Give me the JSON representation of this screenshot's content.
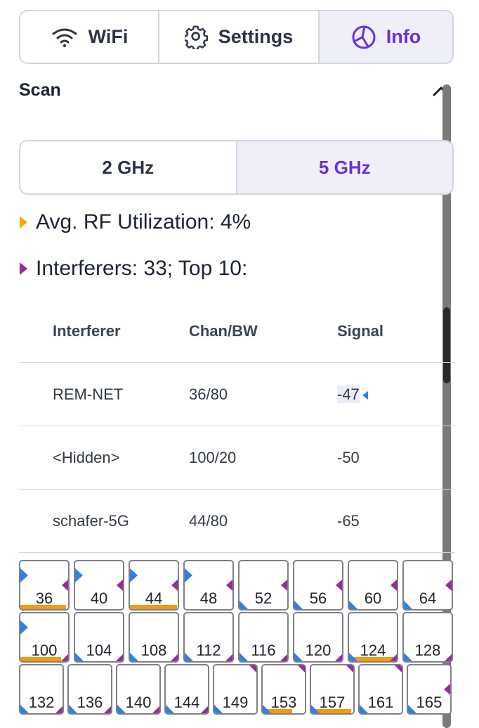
{
  "tabs": [
    {
      "label": "WiFi",
      "icon": "wifi-icon"
    },
    {
      "label": "Settings",
      "icon": "gear-icon"
    },
    {
      "label": "Info",
      "icon": "info-globe-icon",
      "active": true
    }
  ],
  "scan": {
    "title": "Scan",
    "collapse_icon": "chevron-up-icon"
  },
  "bands": [
    {
      "label": "2 GHz"
    },
    {
      "label": "5 GHz",
      "active": true
    }
  ],
  "stats": {
    "rf_utilization": "Avg. RF Utilization: 4%",
    "interferers": "Interferers: 33; Top 10:"
  },
  "table": {
    "headers": [
      "Interferer",
      "Chan/BW",
      "Signal"
    ],
    "rows": [
      {
        "name": "REM-NET",
        "chan": "36/80",
        "signal": "-47"
      },
      {
        "name": "<Hidden>",
        "chan": "100/20",
        "signal": "-50"
      },
      {
        "name": "schafer-5G",
        "chan": "44/80",
        "signal": "-65"
      }
    ]
  },
  "channels": {
    "row1": [
      {
        "num": "36",
        "util": 0.95,
        "mark": "tl",
        "right": "mr"
      },
      {
        "num": "40",
        "util": 0,
        "mark": "tl",
        "right": "mr"
      },
      {
        "num": "44",
        "util": 0.98,
        "mark": "tl",
        "right": "mr"
      },
      {
        "num": "48",
        "util": 0,
        "mark": "tl",
        "right": "mr"
      },
      {
        "num": "52",
        "util": 0,
        "mark": "bl",
        "right": "mr"
      },
      {
        "num": "56",
        "util": 0,
        "mark": "bl",
        "right": "mr"
      },
      {
        "num": "60",
        "util": 0,
        "mark": "bl",
        "right": "mr"
      },
      {
        "num": "64",
        "util": 0,
        "mark": "bl",
        "right": "mr"
      }
    ],
    "row2": [
      {
        "num": "100",
        "util": 0.85,
        "mark": "tl",
        "right": "brp"
      },
      {
        "num": "104",
        "util": 0,
        "mark": "bl",
        "right": "brp"
      },
      {
        "num": "108",
        "util": 0,
        "mark": "bl",
        "right": "brp"
      },
      {
        "num": "112",
        "util": 0,
        "mark": "bl",
        "right": "brp"
      },
      {
        "num": "116",
        "util": 0,
        "mark": "bl",
        "right": "brp"
      },
      {
        "num": "120",
        "util": 0,
        "mark": "bl",
        "right": "brp"
      },
      {
        "num": "124",
        "util": 1.0,
        "mark": "bl",
        "right": "brp"
      },
      {
        "num": "128",
        "util": 0,
        "mark": "bl",
        "right": "brp"
      }
    ],
    "row3": [
      {
        "num": "132",
        "util": 0,
        "mark": "bl",
        "right": "brp"
      },
      {
        "num": "136",
        "util": 0,
        "mark": "bl",
        "right": "brp"
      },
      {
        "num": "140",
        "util": 0,
        "mark": "bl",
        "right": "brp"
      },
      {
        "num": "144",
        "util": 0,
        "mark": "bl",
        "right": "brp"
      },
      {
        "num": "149",
        "util": 0,
        "mark": "bl",
        "right": "tr"
      },
      {
        "num": "153",
        "util": 0.7,
        "mark": "bl",
        "right": "tr"
      },
      {
        "num": "157",
        "util": 0.95,
        "mark": "bl",
        "right": "tr"
      },
      {
        "num": "161",
        "util": 0,
        "mark": "bl",
        "right": "tr"
      },
      {
        "num": "165",
        "util": 0,
        "mark": "bl",
        "right": "mr"
      }
    ]
  },
  "colors": {
    "accent": "#6a2fe0",
    "utilization": "#f59b08",
    "interferer": "#9a2a9b",
    "channel_marker": "#2f7fe9"
  }
}
